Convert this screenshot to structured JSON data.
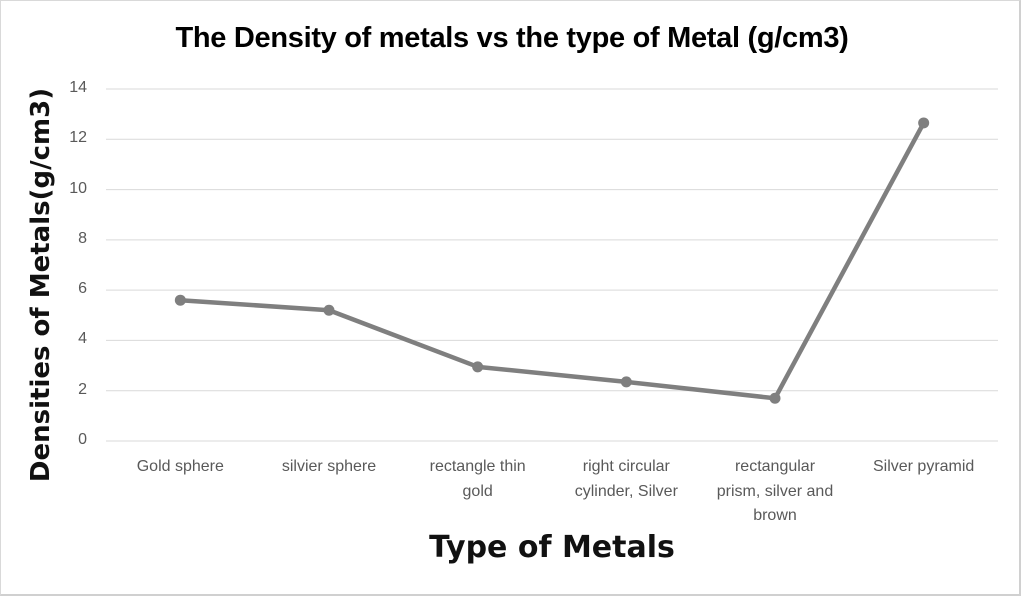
{
  "chart_data": {
    "type": "line",
    "title": "The Density of metals vs the type of Metal (g/cm3)",
    "xlabel": "Type of Metals",
    "ylabel": "Densities of Metals(g/cm3)",
    "categories": [
      "Gold sphere",
      "silvier sphere",
      "rectangle thin gold",
      "right circular cylinder, Silver",
      "rectangular prism, silver and brown",
      "Silver pyramid"
    ],
    "category_lines": [
      [
        "Gold sphere"
      ],
      [
        "silvier sphere"
      ],
      [
        "rectangle thin",
        "gold"
      ],
      [
        "right circular",
        "cylinder, Silver"
      ],
      [
        "rectangular",
        "prism, silver and",
        "brown"
      ],
      [
        "Silver pyramid"
      ]
    ],
    "series": [
      {
        "name": "Density",
        "values": [
          5.6,
          5.2,
          2.95,
          2.35,
          1.7,
          12.65
        ],
        "color": "#7f7f7f"
      }
    ],
    "ylim": [
      0,
      14
    ],
    "yticks": [
      "0",
      "2",
      "4",
      "6",
      "8",
      "10",
      "12",
      "14"
    ],
    "grid": true,
    "legend": "none"
  },
  "colors": {
    "line": "#7f7f7f",
    "grid": "#d9d9d9",
    "tick_text": "#595959"
  }
}
